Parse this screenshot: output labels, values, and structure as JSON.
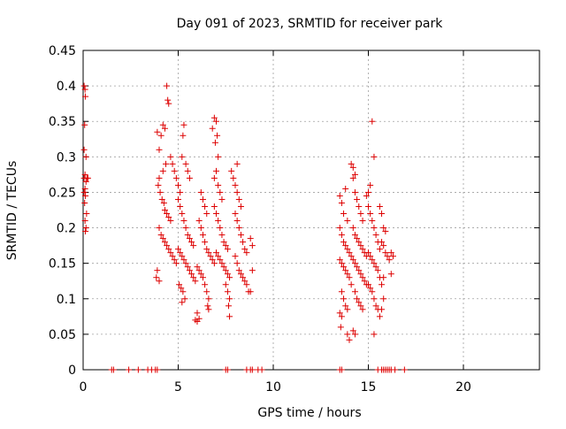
{
  "chart_data": {
    "type": "scatter",
    "title": "Day 091 of 2023, SRMTID for receiver park",
    "xlabel": "GPS time / hours",
    "ylabel": "SRMTID / TECUs",
    "xlim": [
      0,
      24
    ],
    "ylim": [
      0,
      0.45
    ],
    "xticks": [
      0,
      5,
      10,
      15,
      20
    ],
    "xtick_labels": [
      "0",
      "5",
      "10",
      "15",
      "20"
    ],
    "yticks": [
      0,
      0.05,
      0.1,
      0.15,
      0.2,
      0.25,
      0.3,
      0.35,
      0.4,
      0.45
    ],
    "ytick_labels": [
      "0",
      "0.05",
      "0.1",
      "0.15",
      "0.2",
      "0.25",
      "0.3",
      "0.35",
      "0.4",
      "0.45"
    ],
    "grid": true,
    "marker": "+",
    "series_color": "#dd0000",
    "series": [
      {
        "name": "SRMTID",
        "points": [
          [
            0.05,
            0.4
          ],
          [
            0.1,
            0.395
          ],
          [
            0.12,
            0.385
          ],
          [
            0.08,
            0.345
          ],
          [
            0.05,
            0.31
          ],
          [
            0.15,
            0.3
          ],
          [
            0.1,
            0.275
          ],
          [
            0.05,
            0.27
          ],
          [
            0.2,
            0.27
          ],
          [
            0.15,
            0.265
          ],
          [
            0.25,
            0.27
          ],
          [
            0.1,
            0.255
          ],
          [
            0.05,
            0.25
          ],
          [
            0.12,
            0.245
          ],
          [
            0.08,
            0.235
          ],
          [
            0.18,
            0.22
          ],
          [
            0.1,
            0.21
          ],
          [
            0.15,
            0.2
          ],
          [
            0.12,
            0.195
          ],
          [
            3.9,
            0.335
          ],
          [
            4.0,
            0.31
          ],
          [
            4.1,
            0.33
          ],
          [
            4.2,
            0.345
          ],
          [
            4.3,
            0.34
          ],
          [
            4.4,
            0.4
          ],
          [
            4.45,
            0.38
          ],
          [
            4.5,
            0.375
          ],
          [
            4.35,
            0.29
          ],
          [
            4.2,
            0.28
          ],
          [
            4.0,
            0.27
          ],
          [
            3.95,
            0.26
          ],
          [
            4.05,
            0.25
          ],
          [
            4.15,
            0.24
          ],
          [
            4.25,
            0.235
          ],
          [
            4.3,
            0.225
          ],
          [
            4.4,
            0.22
          ],
          [
            4.5,
            0.215
          ],
          [
            4.6,
            0.21
          ],
          [
            4.0,
            0.2
          ],
          [
            4.1,
            0.19
          ],
          [
            4.2,
            0.185
          ],
          [
            4.3,
            0.18
          ],
          [
            4.4,
            0.175
          ],
          [
            4.5,
            0.17
          ],
          [
            4.6,
            0.165
          ],
          [
            4.7,
            0.16
          ],
          [
            4.8,
            0.155
          ],
          [
            4.9,
            0.15
          ],
          [
            3.9,
            0.14
          ],
          [
            3.85,
            0.13
          ],
          [
            4.0,
            0.125
          ],
          [
            4.6,
            0.3
          ],
          [
            4.7,
            0.29
          ],
          [
            4.8,
            0.28
          ],
          [
            4.9,
            0.27
          ],
          [
            5.0,
            0.26
          ],
          [
            5.1,
            0.25
          ],
          [
            5.2,
            0.3
          ],
          [
            5.3,
            0.345
          ],
          [
            5.25,
            0.33
          ],
          [
            5.4,
            0.29
          ],
          [
            5.5,
            0.28
          ],
          [
            5.6,
            0.27
          ],
          [
            5.0,
            0.24
          ],
          [
            5.1,
            0.23
          ],
          [
            5.2,
            0.22
          ],
          [
            5.3,
            0.21
          ],
          [
            5.4,
            0.2
          ],
          [
            5.5,
            0.19
          ],
          [
            5.6,
            0.185
          ],
          [
            5.7,
            0.18
          ],
          [
            5.8,
            0.175
          ],
          [
            5.0,
            0.17
          ],
          [
            5.1,
            0.165
          ],
          [
            5.2,
            0.16
          ],
          [
            5.3,
            0.155
          ],
          [
            5.4,
            0.15
          ],
          [
            5.5,
            0.145
          ],
          [
            5.6,
            0.14
          ],
          [
            5.7,
            0.135
          ],
          [
            5.8,
            0.13
          ],
          [
            5.9,
            0.125
          ],
          [
            5.05,
            0.12
          ],
          [
            5.15,
            0.115
          ],
          [
            5.25,
            0.11
          ],
          [
            5.35,
            0.1
          ],
          [
            5.2,
            0.095
          ],
          [
            5.9,
            0.07
          ],
          [
            6.0,
            0.068
          ],
          [
            6.1,
            0.072
          ],
          [
            6.0,
            0.08
          ],
          [
            6.2,
            0.25
          ],
          [
            6.3,
            0.24
          ],
          [
            6.4,
            0.23
          ],
          [
            6.5,
            0.22
          ],
          [
            6.1,
            0.21
          ],
          [
            6.2,
            0.2
          ],
          [
            6.3,
            0.19
          ],
          [
            6.4,
            0.18
          ],
          [
            6.5,
            0.17
          ],
          [
            6.6,
            0.165
          ],
          [
            6.7,
            0.16
          ],
          [
            6.8,
            0.155
          ],
          [
            6.9,
            0.15
          ],
          [
            6.0,
            0.145
          ],
          [
            6.1,
            0.14
          ],
          [
            6.2,
            0.135
          ],
          [
            6.3,
            0.13
          ],
          [
            6.4,
            0.12
          ],
          [
            6.5,
            0.11
          ],
          [
            6.6,
            0.1
          ],
          [
            6.55,
            0.09
          ],
          [
            6.6,
            0.085
          ],
          [
            6.8,
            0.34
          ],
          [
            6.9,
            0.355
          ],
          [
            7.0,
            0.35
          ],
          [
            7.05,
            0.33
          ],
          [
            6.95,
            0.32
          ],
          [
            7.1,
            0.3
          ],
          [
            7.0,
            0.28
          ],
          [
            6.9,
            0.27
          ],
          [
            7.1,
            0.26
          ],
          [
            7.2,
            0.25
          ],
          [
            7.3,
            0.24
          ],
          [
            6.9,
            0.23
          ],
          [
            7.0,
            0.22
          ],
          [
            7.1,
            0.21
          ],
          [
            7.2,
            0.2
          ],
          [
            7.3,
            0.19
          ],
          [
            7.4,
            0.18
          ],
          [
            7.5,
            0.175
          ],
          [
            7.6,
            0.17
          ],
          [
            7.0,
            0.165
          ],
          [
            7.1,
            0.16
          ],
          [
            7.2,
            0.155
          ],
          [
            7.3,
            0.15
          ],
          [
            7.4,
            0.145
          ],
          [
            7.5,
            0.14
          ],
          [
            7.6,
            0.135
          ],
          [
            7.7,
            0.13
          ],
          [
            7.5,
            0.12
          ],
          [
            7.6,
            0.11
          ],
          [
            7.7,
            0.1
          ],
          [
            7.65,
            0.09
          ],
          [
            7.7,
            0.075
          ],
          [
            7.8,
            0.28
          ],
          [
            7.9,
            0.27
          ],
          [
            8.0,
            0.26
          ],
          [
            8.1,
            0.25
          ],
          [
            8.2,
            0.24
          ],
          [
            8.3,
            0.23
          ],
          [
            8.1,
            0.29
          ],
          [
            8.0,
            0.22
          ],
          [
            8.1,
            0.21
          ],
          [
            8.2,
            0.2
          ],
          [
            8.3,
            0.19
          ],
          [
            8.4,
            0.18
          ],
          [
            8.5,
            0.17
          ],
          [
            8.6,
            0.165
          ],
          [
            8.0,
            0.16
          ],
          [
            8.1,
            0.15
          ],
          [
            8.2,
            0.14
          ],
          [
            8.3,
            0.135
          ],
          [
            8.4,
            0.13
          ],
          [
            8.5,
            0.125
          ],
          [
            8.6,
            0.12
          ],
          [
            8.7,
            0.11
          ],
          [
            8.8,
            0.185
          ],
          [
            8.9,
            0.175
          ],
          [
            8.9,
            0.14
          ],
          [
            8.8,
            0.11
          ],
          [
            13.5,
            0.245
          ],
          [
            13.6,
            0.235
          ],
          [
            13.7,
            0.22
          ],
          [
            13.8,
            0.255
          ],
          [
            13.9,
            0.21
          ],
          [
            13.5,
            0.2
          ],
          [
            13.6,
            0.19
          ],
          [
            13.7,
            0.18
          ],
          [
            13.8,
            0.175
          ],
          [
            13.9,
            0.17
          ],
          [
            14.0,
            0.165
          ],
          [
            14.1,
            0.16
          ],
          [
            13.5,
            0.155
          ],
          [
            13.6,
            0.15
          ],
          [
            13.7,
            0.145
          ],
          [
            13.8,
            0.14
          ],
          [
            13.9,
            0.135
          ],
          [
            14.0,
            0.13
          ],
          [
            14.1,
            0.12
          ],
          [
            13.6,
            0.11
          ],
          [
            13.7,
            0.1
          ],
          [
            13.8,
            0.09
          ],
          [
            13.9,
            0.085
          ],
          [
            13.5,
            0.08
          ],
          [
            13.6,
            0.075
          ],
          [
            13.55,
            0.06
          ],
          [
            13.9,
            0.05
          ],
          [
            14.0,
            0.042
          ],
          [
            14.1,
            0.29
          ],
          [
            14.2,
            0.285
          ],
          [
            14.3,
            0.275
          ],
          [
            14.2,
            0.27
          ],
          [
            14.3,
            0.25
          ],
          [
            14.4,
            0.24
          ],
          [
            14.5,
            0.23
          ],
          [
            14.6,
            0.22
          ],
          [
            14.7,
            0.21
          ],
          [
            14.2,
            0.2
          ],
          [
            14.3,
            0.19
          ],
          [
            14.4,
            0.185
          ],
          [
            14.5,
            0.18
          ],
          [
            14.6,
            0.175
          ],
          [
            14.7,
            0.17
          ],
          [
            14.8,
            0.165
          ],
          [
            14.9,
            0.16
          ],
          [
            14.2,
            0.155
          ],
          [
            14.3,
            0.15
          ],
          [
            14.4,
            0.145
          ],
          [
            14.5,
            0.14
          ],
          [
            14.6,
            0.135
          ],
          [
            14.7,
            0.13
          ],
          [
            14.8,
            0.125
          ],
          [
            14.9,
            0.12
          ],
          [
            14.3,
            0.11
          ],
          [
            14.4,
            0.1
          ],
          [
            14.5,
            0.095
          ],
          [
            14.6,
            0.09
          ],
          [
            14.7,
            0.085
          ],
          [
            14.2,
            0.055
          ],
          [
            14.3,
            0.05
          ],
          [
            14.9,
            0.245
          ],
          [
            15.0,
            0.25
          ],
          [
            15.1,
            0.26
          ],
          [
            15.2,
            0.35
          ],
          [
            15.3,
            0.3
          ],
          [
            15.0,
            0.23
          ],
          [
            15.1,
            0.22
          ],
          [
            15.2,
            0.21
          ],
          [
            15.3,
            0.2
          ],
          [
            15.4,
            0.19
          ],
          [
            15.5,
            0.18
          ],
          [
            15.6,
            0.17
          ],
          [
            15.0,
            0.165
          ],
          [
            15.1,
            0.16
          ],
          [
            15.2,
            0.155
          ],
          [
            15.3,
            0.15
          ],
          [
            15.4,
            0.145
          ],
          [
            15.5,
            0.14
          ],
          [
            15.6,
            0.13
          ],
          [
            15.0,
            0.12
          ],
          [
            15.1,
            0.115
          ],
          [
            15.2,
            0.11
          ],
          [
            15.3,
            0.1
          ],
          [
            15.4,
            0.09
          ],
          [
            15.5,
            0.085
          ],
          [
            15.6,
            0.075
          ],
          [
            15.3,
            0.05
          ],
          [
            15.6,
            0.23
          ],
          [
            15.7,
            0.22
          ],
          [
            15.8,
            0.2
          ],
          [
            15.9,
            0.195
          ],
          [
            15.7,
            0.18
          ],
          [
            15.8,
            0.175
          ],
          [
            15.9,
            0.165
          ],
          [
            16.0,
            0.16
          ],
          [
            16.1,
            0.155
          ],
          [
            16.2,
            0.165
          ],
          [
            16.3,
            0.16
          ],
          [
            16.2,
            0.135
          ],
          [
            15.8,
            0.13
          ],
          [
            15.7,
            0.12
          ],
          [
            15.8,
            0.1
          ],
          [
            15.7,
            0.085
          ],
          [
            1.5,
            0.0
          ],
          [
            1.6,
            0.0
          ],
          [
            2.4,
            0.0
          ],
          [
            2.9,
            0.0
          ],
          [
            3.4,
            0.0
          ],
          [
            3.6,
            0.0
          ],
          [
            3.8,
            0.0
          ],
          [
            3.9,
            0.0
          ],
          [
            7.5,
            0.0
          ],
          [
            7.6,
            0.0
          ],
          [
            8.6,
            0.0
          ],
          [
            8.8,
            0.0
          ],
          [
            8.9,
            0.0
          ],
          [
            9.2,
            0.0
          ],
          [
            9.4,
            0.0
          ],
          [
            13.5,
            0.0
          ],
          [
            13.6,
            0.0
          ],
          [
            15.5,
            0.0
          ],
          [
            15.7,
            0.0
          ],
          [
            15.8,
            0.0
          ],
          [
            15.9,
            0.0
          ],
          [
            16.0,
            0.0
          ],
          [
            16.1,
            0.0
          ],
          [
            16.2,
            0.0
          ],
          [
            16.4,
            0.0
          ],
          [
            16.9,
            0.0
          ]
        ]
      }
    ]
  }
}
